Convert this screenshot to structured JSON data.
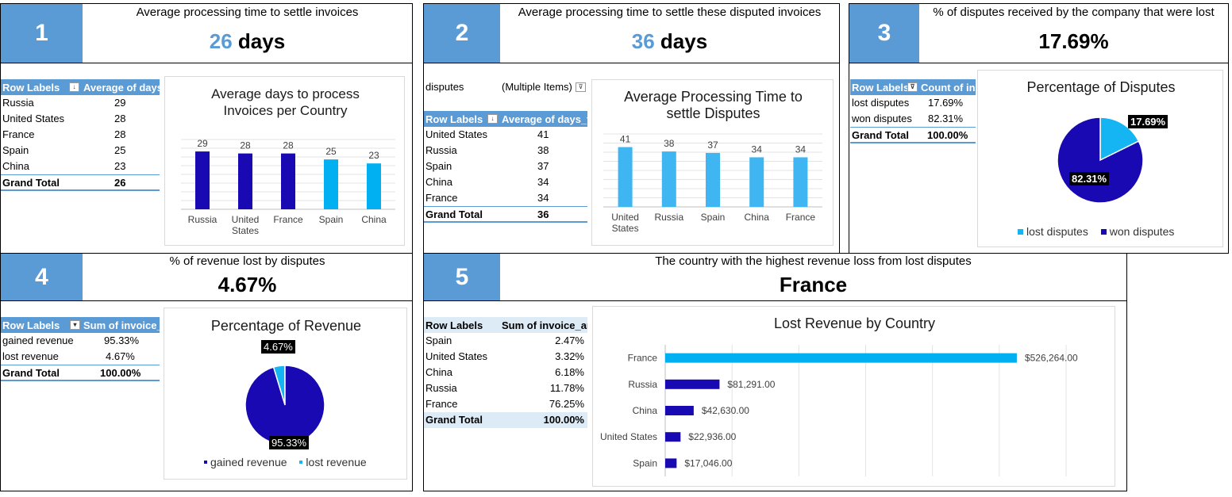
{
  "colors": {
    "accent": "#5b9bd5",
    "dark_bar": "#1809b3",
    "light_bar": "#00b0f0",
    "pie_dark": "#1809b3",
    "pie_light": "#14b5f2"
  },
  "kpi1": {
    "num": "1",
    "title": "Average processing time to settle invoices",
    "value_num": "26",
    "value_unit": " days"
  },
  "kpi2": {
    "num": "2",
    "title": "Average processing time to settle these disputed invoices",
    "value_num": "36",
    "value_unit": " days"
  },
  "kpi3": {
    "num": "3",
    "title": "% of disputes received by the company that were lost",
    "value": "17.69%"
  },
  "kpi4": {
    "num": "4",
    "title": "% of revenue lost by disputes",
    "value": "4.67%"
  },
  "kpi5": {
    "num": "5",
    "title": "The country with the highest revenue loss from lost disputes",
    "value": "France"
  },
  "pivot1": {
    "h1": "Row Labels",
    "h2": "Average of days",
    "rows": [
      [
        "Russia",
        "29"
      ],
      [
        "United States",
        "28"
      ],
      [
        "France",
        "28"
      ],
      [
        "Spain",
        "25"
      ],
      [
        "China",
        "23"
      ]
    ],
    "total": [
      "Grand Total",
      "26"
    ]
  },
  "pivot2": {
    "filter_label": "disputes",
    "filter_value": "(Multiple Items)",
    "h1": "Row Labels",
    "h2": "Average of days_t",
    "rows": [
      [
        "United States",
        "41"
      ],
      [
        "Russia",
        "38"
      ],
      [
        "Spain",
        "37"
      ],
      [
        "China",
        "34"
      ],
      [
        "France",
        "34"
      ]
    ],
    "total": [
      "Grand Total",
      "36"
    ]
  },
  "pivot3": {
    "h1": "Row Labels",
    "h2": "Count of in",
    "rows": [
      [
        "lost disputes",
        "17.69%"
      ],
      [
        "won disputes",
        "82.31%"
      ]
    ],
    "total": [
      "Grand Total",
      "100.00%"
    ]
  },
  "pivot4": {
    "h1": "Row Labels",
    "h2": "Sum of invoice_",
    "rows": [
      [
        "gained revenue",
        "95.33%"
      ],
      [
        "lost revenue",
        "4.67%"
      ]
    ],
    "total": [
      "Grand Total",
      "100.00%"
    ]
  },
  "pivot5": {
    "h1": "Row Labels",
    "h2": "Sum of invoice_am",
    "rows": [
      [
        "Spain",
        "2.47%"
      ],
      [
        "United States",
        "3.32%"
      ],
      [
        "China",
        "6.18%"
      ],
      [
        "Russia",
        "11.78%"
      ],
      [
        "France",
        "76.25%"
      ]
    ],
    "total": [
      "Grand Total",
      "100.00%"
    ]
  },
  "chart_data": [
    {
      "id": "chart1",
      "type": "bar",
      "title": "Average days to process Invoices per Country",
      "categories": [
        "Russia",
        "United States",
        "France",
        "Spain",
        "China"
      ],
      "values": [
        29,
        28,
        28,
        25,
        23
      ],
      "bar_colors": [
        "#1809b3",
        "#1809b3",
        "#1809b3",
        "#00b0f0",
        "#00b0f0"
      ],
      "ylim": [
        0,
        35
      ],
      "grid": true
    },
    {
      "id": "chart2",
      "type": "bar",
      "title": "Average Processing Time to settle Disputes",
      "categories": [
        "United States",
        "Russia",
        "Spain",
        "China",
        "France"
      ],
      "values": [
        41,
        38,
        37,
        34,
        34
      ],
      "bar_colors": [
        "#3fb6f2",
        "#3fb6f2",
        "#3fb6f2",
        "#3fb6f2",
        "#3fb6f2"
      ],
      "ylim": [
        0,
        50
      ],
      "grid": true
    },
    {
      "id": "chart3",
      "type": "pie",
      "title": "Percentage of Disputes",
      "labels": [
        "lost disputes",
        "won disputes"
      ],
      "values": [
        17.69,
        82.31
      ],
      "data_labels": [
        "17.69%",
        "82.31%"
      ],
      "legend": "bottom"
    },
    {
      "id": "chart4",
      "type": "pie",
      "title": "Percentage of Revenue",
      "labels": [
        "gained revenue",
        "lost revenue"
      ],
      "values": [
        95.33,
        4.67
      ],
      "data_labels": [
        "95.33%",
        "4.67%"
      ],
      "legend": "bottom"
    },
    {
      "id": "chart5",
      "type": "bar",
      "orientation": "horizontal",
      "title": "Lost Revenue by Country",
      "categories": [
        "France",
        "Russia",
        "China",
        "United States",
        "Spain"
      ],
      "values": [
        526264,
        81291,
        42630,
        22936,
        17046
      ],
      "data_labels": [
        "$526,264.00",
        "$81,291.00",
        "$42,630.00",
        "$22,936.00",
        "$17,046.00"
      ],
      "bar_colors": [
        "#00b0f0",
        "#1809b3",
        "#1809b3",
        "#1809b3",
        "#1809b3"
      ],
      "xlim": [
        0,
        600000
      ],
      "grid": true
    }
  ]
}
